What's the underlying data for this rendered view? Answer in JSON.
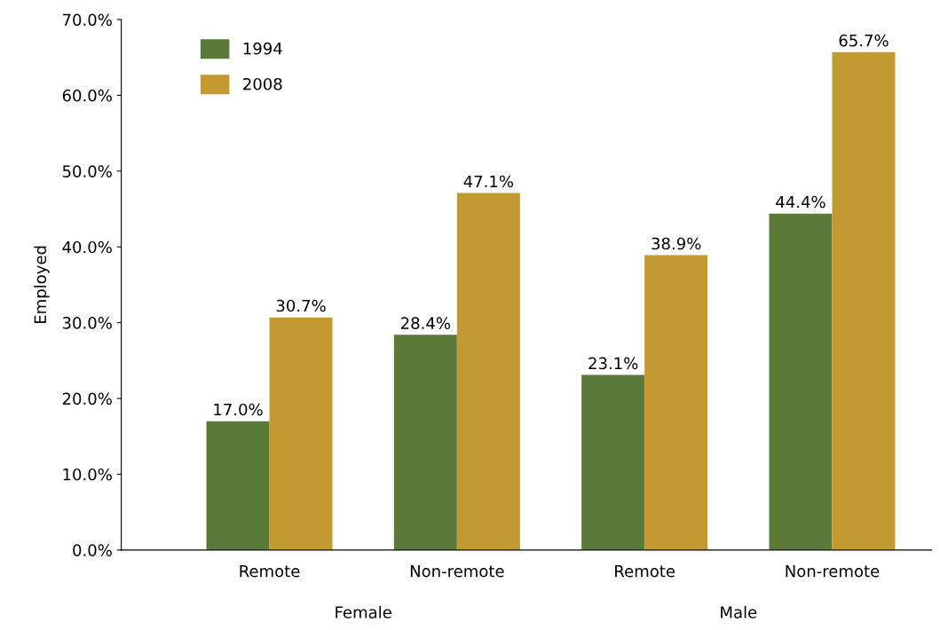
{
  "chart_data": {
    "type": "bar",
    "ylabel": "Employed",
    "categories": [
      "Remote",
      "Non-remote",
      "Remote",
      "Non-remote"
    ],
    "series": [
      {
        "name": "1994",
        "color": "#5a7a3a",
        "values": [
          17.0,
          28.4,
          23.1,
          44.4
        ],
        "value_labels": [
          "17.0%",
          "28.4%",
          "23.1%",
          "44.4%"
        ]
      },
      {
        "name": "2008",
        "color": "#c39a32",
        "values": [
          30.7,
          47.1,
          38.9,
          65.7
        ],
        "value_labels": [
          "30.7%",
          "47.1%",
          "38.9%",
          "65.7%"
        ]
      }
    ],
    "ylim": [
      0,
      70
    ],
    "yticks": [
      {
        "value": 0,
        "label": "0.0%"
      },
      {
        "value": 10,
        "label": "10.0%"
      },
      {
        "value": 20,
        "label": "20.0%"
      },
      {
        "value": 30,
        "label": "30.0%"
      },
      {
        "value": 40,
        "label": "40.0%"
      },
      {
        "value": 50,
        "label": "50.0%"
      },
      {
        "value": 60,
        "label": "60.0%"
      },
      {
        "value": 70,
        "label": "70.0%"
      }
    ],
    "annotations": [
      "Female",
      "Male"
    ],
    "grid": false,
    "legend": "top left"
  }
}
